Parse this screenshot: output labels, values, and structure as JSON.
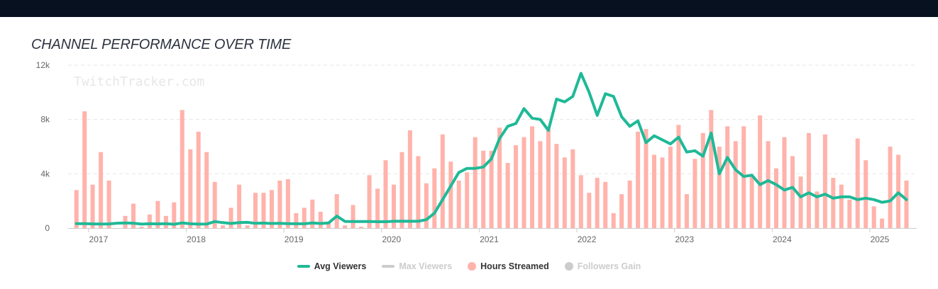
{
  "header": {
    "title": "CHANNEL PERFORMANCE OVER TIME"
  },
  "watermark": "TwitchTracker.com",
  "colors": {
    "avg_viewers": "#1fb997",
    "hours_streamed": "#ffb3ab",
    "disabled": "#cccccc",
    "grid": "#e6e6e6"
  },
  "legend": [
    {
      "label": "Avg Viewers",
      "shape": "line",
      "color": "#1fb997",
      "enabled": true
    },
    {
      "label": "Max Viewers",
      "shape": "line",
      "color": "#cccccc",
      "enabled": false
    },
    {
      "label": "Hours Streamed",
      "shape": "dot",
      "color": "#ffb3ab",
      "enabled": true
    },
    {
      "label": "Followers Gain",
      "shape": "dot",
      "color": "#cccccc",
      "enabled": false
    }
  ],
  "chart_data": {
    "type": "bar",
    "title": "CHANNEL PERFORMANCE OVER TIME",
    "xlabel": "",
    "ylabel": "",
    "x_start": "2016-11",
    "x_end": "2025-05",
    "xlim": [
      2016.79,
      2025.48
    ],
    "ylim": [
      0,
      12000
    ],
    "yticks": [
      0,
      4000,
      8000,
      12000
    ],
    "ytick_labels": [
      "0",
      "4k",
      "8k",
      "12k"
    ],
    "xticks": [
      2017,
      2018,
      2019,
      2020,
      2021,
      2022,
      2023,
      2024,
      2025
    ],
    "xtick_labels": [
      "2017",
      "2018",
      "2019",
      "2020",
      "2021",
      "2022",
      "2023",
      "2024",
      "2025"
    ],
    "grid": true,
    "series": [
      {
        "name": "Hours Streamed",
        "type": "bar",
        "values": [
          2800,
          8600,
          3200,
          5600,
          3500,
          0,
          900,
          1800,
          100,
          1000,
          2000,
          900,
          1900,
          8700,
          5800,
          7100,
          5600,
          3400,
          200,
          1500,
          3200,
          200,
          2600,
          2600,
          2800,
          3500,
          3600,
          1100,
          1500,
          2100,
          1200,
          400,
          2500,
          200,
          1700,
          100,
          3900,
          2900,
          5000,
          3200,
          5600,
          7200,
          5300,
          3300,
          4400,
          6900,
          4900,
          3500,
          4100,
          6700,
          5700,
          5700,
          7400,
          4800,
          6100,
          6700,
          7500,
          6400,
          7300,
          6200,
          5200,
          5800,
          3900,
          2600,
          3700,
          3400,
          1100,
          2500,
          3500,
          7100,
          7300,
          5400,
          5200,
          6000,
          7600,
          2500,
          5100,
          7000,
          8700,
          6000,
          7500,
          6400,
          7500,
          3800,
          8300,
          6400,
          4400,
          6700,
          5300,
          3800,
          7000,
          2700,
          6900,
          3700,
          3200,
          2100,
          6600,
          5000,
          1600,
          700,
          6000,
          5400,
          3500
        ]
      },
      {
        "name": "Avg Viewers",
        "type": "line",
        "values": [
          330,
          330,
          310,
          300,
          310,
          360,
          380,
          360,
          290,
          320,
          310,
          330,
          280,
          380,
          320,
          290,
          300,
          480,
          400,
          340,
          400,
          420,
          350,
          370,
          340,
          350,
          330,
          320,
          320,
          380,
          340,
          380,
          880,
          490,
          480,
          480,
          480,
          470,
          470,
          500,
          510,
          500,
          500,
          620,
          1100,
          2100,
          3100,
          4100,
          4400,
          4400,
          4500,
          5100,
          6600,
          7500,
          7700,
          8800,
          8100,
          8000,
          7200,
          9500,
          9300,
          9700,
          11400,
          10000,
          8300,
          9900,
          9700,
          8200,
          7500,
          7900,
          6300,
          6800,
          6500,
          6200,
          6700,
          5600,
          5700,
          5300,
          7000,
          4000,
          5200,
          4300,
          3800,
          3900,
          3200,
          3500,
          3200,
          2800,
          3000,
          2300,
          2600,
          2300,
          2500,
          2200,
          2300,
          2300,
          2100,
          2200,
          2100,
          1900,
          2000,
          2600,
          2100
        ]
      }
    ]
  }
}
